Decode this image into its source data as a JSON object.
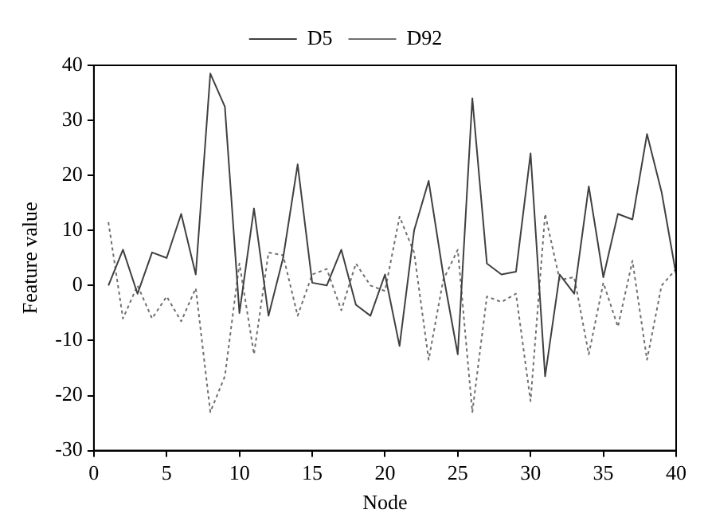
{
  "chart_data": {
    "type": "line",
    "xlabel": "Node",
    "ylabel": "Feature value",
    "x": [
      1,
      2,
      3,
      4,
      5,
      6,
      7,
      8,
      9,
      10,
      11,
      12,
      13,
      14,
      15,
      16,
      17,
      18,
      19,
      20,
      21,
      22,
      23,
      24,
      25,
      26,
      27,
      28,
      29,
      30,
      31,
      32,
      33,
      34,
      35,
      36,
      37,
      38,
      39,
      40
    ],
    "series": [
      {
        "name": "D5",
        "color": "#404040",
        "line_style": "solid",
        "values": [
          0,
          6.5,
          -1.5,
          6,
          5,
          13,
          2,
          38.5,
          32.5,
          -5,
          14,
          -5.5,
          5,
          22,
          0.5,
          0,
          6.5,
          -3.5,
          -5.5,
          2,
          -11,
          10,
          19,
          2,
          -12.5,
          34,
          4,
          2,
          2.5,
          24,
          -16.5,
          2,
          -1.5,
          18,
          1.5,
          13,
          12,
          27.5,
          17,
          2
        ]
      },
      {
        "name": "D92",
        "color": "#707070",
        "line_style": "dotted",
        "values": [
          11.5,
          -6,
          0,
          -6,
          -2,
          -6.5,
          -0.5,
          -23,
          -16.5,
          4,
          -12.5,
          6,
          5.5,
          -5.5,
          2,
          3,
          -4.5,
          4,
          0,
          -1,
          12.5,
          6,
          -13.5,
          1,
          6.5,
          -23,
          -2,
          -3,
          -1.5,
          -21,
          13,
          1,
          1.5,
          -12.5,
          0.5,
          -7.5,
          4.5,
          -13.5,
          0,
          3
        ]
      }
    ],
    "xlim": [
      0,
      40
    ],
    "xticks": [
      0,
      5,
      10,
      15,
      20,
      25,
      30,
      35,
      40
    ],
    "ylim": [
      -30,
      40
    ],
    "yticks": [
      -30,
      -20,
      -10,
      0,
      10,
      20,
      30,
      40
    ],
    "grid": false,
    "legend": "top",
    "marker": "none"
  }
}
